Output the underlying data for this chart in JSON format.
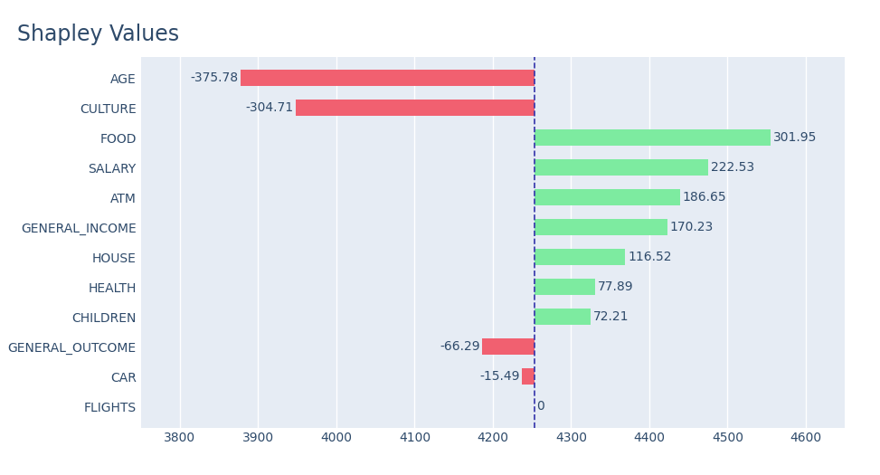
{
  "title": "Shapley Values",
  "base_value": 4253.0,
  "categories": [
    "AGE",
    "CULTURE",
    "FOOD",
    "SALARY",
    "ATM",
    "GENERAL_INCOME",
    "HOUSE",
    "HEALTH",
    "CHILDREN",
    "GENERAL_OUTCOME",
    "CAR",
    "FLIGHTS"
  ],
  "shap_values": [
    -375.78,
    -304.71,
    301.95,
    222.53,
    186.65,
    170.23,
    116.52,
    77.89,
    72.21,
    -66.29,
    -15.49,
    0
  ],
  "bar_colors_pos": "#7DEBA0",
  "bar_colors_neg": "#F16070",
  "outer_bg_color": "#FFFFFF",
  "plot_bg_color": "#E6ECF4",
  "title_color": "#2E4A6A",
  "label_color": "#2E4A6A",
  "tick_color": "#2E4A6A",
  "vline_color": "#3333AA",
  "grid_color": "#FFFFFF",
  "xlim": [
    3750,
    4650
  ],
  "xticks": [
    3800,
    3900,
    4000,
    4100,
    4200,
    4300,
    4400,
    4500,
    4600
  ],
  "title_fontsize": 17,
  "label_fontsize": 10,
  "tick_fontsize": 10,
  "bar_height": 0.55
}
